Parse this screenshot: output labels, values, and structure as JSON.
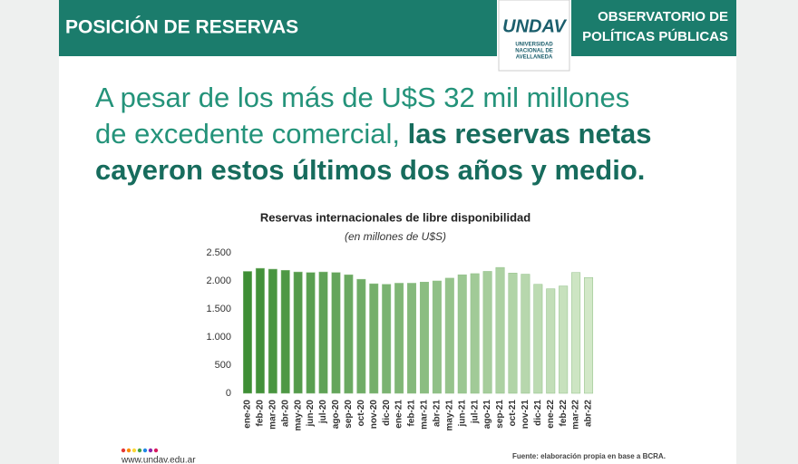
{
  "header": {
    "left": "POSICIÓN DE RESERVAS",
    "right_line1": "OBSERVATORIO DE",
    "right_line2": "POLÍTICAS PÚBLICAS",
    "logo": "UNDAV",
    "logo_line1": "UNIVERSIDAD",
    "logo_line2": "NACIONAL DE",
    "logo_line3": "AVELLANEDA"
  },
  "headline": {
    "line1": "A pesar de los más de U$S 32 mil millones",
    "line2": "de excedente comercial, ",
    "bold1": "las reservas netas",
    "bold2": "cayeron estos últimos dos años y medio."
  },
  "footer": {
    "website": "www.undav.edu.ar",
    "source": "Fuente: elaboración propia en base a BCRA."
  },
  "chart_data": {
    "type": "bar",
    "title": "Reservas internacionales de libre disponibilidad",
    "subtitle": "(en millones de U$S)",
    "categories": [
      "ene-20",
      "feb-20",
      "mar-20",
      "abr-20",
      "may-20",
      "jun-20",
      "jul-20",
      "ago-20",
      "sep-20",
      "oct-20",
      "nov-20",
      "dic-20",
      "ene-21",
      "feb-21",
      "mar-21",
      "abr-21",
      "may-21",
      "jun-21",
      "jul-21",
      "ago-21",
      "sep-21",
      "oct-21",
      "nov-21",
      "dic-21",
      "ene-22",
      "feb-22",
      "mar-22",
      "abr-22"
    ],
    "values": [
      2170,
      2225,
      2210,
      2190,
      2160,
      2150,
      2160,
      2150,
      2110,
      2030,
      1950,
      1940,
      1960,
      1960,
      1980,
      2000,
      2050,
      2110,
      2130,
      2170,
      2240,
      2140,
      2120,
      1940,
      1860,
      1910,
      2150,
      2060
    ],
    "colors": [
      "#3e8e35",
      "#d2e8c8"
    ],
    "ylim": [
      0,
      2500
    ],
    "yticks": [
      0,
      500,
      {
        "value": 1000,
        "label": "1.000"
      },
      {
        "value": 1500,
        "label": "1.500"
      },
      {
        "value": 2000,
        "label": "2.000"
      },
      {
        "value": 2500,
        "label": "2.500"
      }
    ],
    "grid": false
  }
}
